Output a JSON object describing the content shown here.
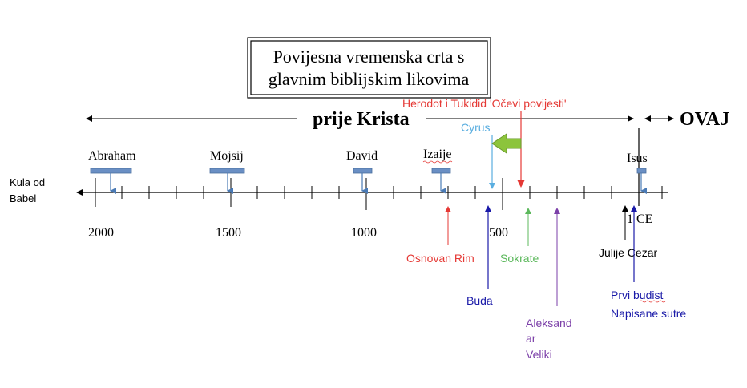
{
  "title": {
    "line1": "Povijesna vremenska crta s",
    "line2": "glavnim biblijskim likovima"
  },
  "eras": {
    "before": "prije Krista",
    "after": "OVAJ"
  },
  "axis_start_label": {
    "line1": "Kula od",
    "line2": "Babel"
  },
  "year_labels": {
    "y2000": "2000",
    "y1500": "1500",
    "y1000": "1000",
    "y500": "500",
    "ce1": "1 CE"
  },
  "figures": {
    "abraham": "Abraham",
    "mojsije": "Mojsij",
    "david": "David",
    "izaije": "Izaije",
    "isus": "Isus"
  },
  "events": {
    "herodot": "Herodot i Tukidid 'Očevi povijesti'",
    "cyrus": "Cyrus",
    "osnovan_rim": "Osnovan Rim",
    "buda": "Buda",
    "sokrate": "Sokrate",
    "aleksandar_1": "Aleksand",
    "aleksandar_2": "ar",
    "aleksandar_3": "Veliki",
    "julije_cezar": "Julije Cezar",
    "prvi_budist": "Prvi budist",
    "napisane_sutre": "Napisane sutre"
  },
  "colors": {
    "axis": "#000000",
    "figure_bar": "#6a8fc4",
    "figure_arrow": "#4a7ab5",
    "red": "#e53935",
    "cyan": "#5aaee0",
    "blue": "#1a1aa8",
    "green": "#5cb85c",
    "purple": "#7b3fa8",
    "arrow_fill": "#8cc43c"
  }
}
